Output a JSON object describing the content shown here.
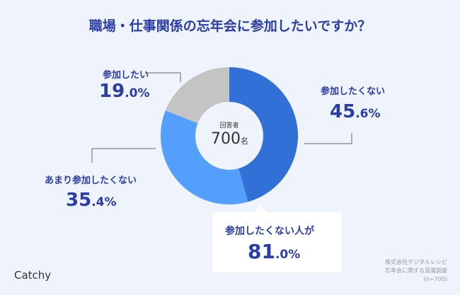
{
  "title": "職場・仕事関係の忘年会に参加したいですか？",
  "chart_data": {
    "type": "pie",
    "donut": true,
    "categories": [
      "参加したくない",
      "あまり参加したくない",
      "参加したい"
    ],
    "values": [
      45.6,
      35.4,
      19.0
    ],
    "colors": [
      "#3170d6",
      "#549ffc",
      "#c4c4c4"
    ],
    "value_labels": [
      {
        "int": "45",
        "dec": ".6%"
      },
      {
        "int": "35",
        "dec": ".4%"
      },
      {
        "int": "19",
        "dec": ".0%"
      }
    ],
    "center_label": "回答者",
    "center_value": "700",
    "center_unit": "名"
  },
  "callout": {
    "label": "参加したくない人が",
    "int": "81",
    "dec": ".0%"
  },
  "note": "株式会社デジタルレシピ\n忘年会に関する意識調査\n(n=700)",
  "logo": "Catchy"
}
